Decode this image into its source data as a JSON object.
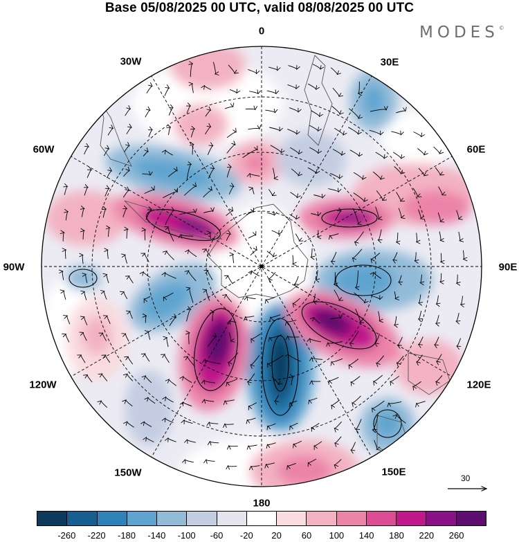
{
  "title": "Base 05/08/2025 00 UTC, valid 08/08/2025 00 UTC",
  "brand": "MODES",
  "brand_mark": "©",
  "longitude_labels": [
    "0",
    "30E",
    "60E",
    "90E",
    "120E",
    "150E",
    "180",
    "150W",
    "120W",
    "90W",
    "60W",
    "30W"
  ],
  "vector_reference": {
    "value": "30"
  },
  "colorbar": {
    "colors": [
      "#0e3a5c",
      "#165f8e",
      "#2e82b8",
      "#5ea4cf",
      "#92bbd8",
      "#c4cde2",
      "#e4e4ef",
      "#ffffff",
      "#f9dbe0",
      "#f3b2c3",
      "#eb84a8",
      "#dc4d93",
      "#c0198a",
      "#8a1286",
      "#5d0e6e"
    ],
    "tick_labels": [
      "-260",
      "-220",
      "-180",
      "-140",
      "-100",
      "-60",
      "-20",
      "20",
      "60",
      "100",
      "140",
      "180",
      "220",
      "260"
    ]
  }
}
